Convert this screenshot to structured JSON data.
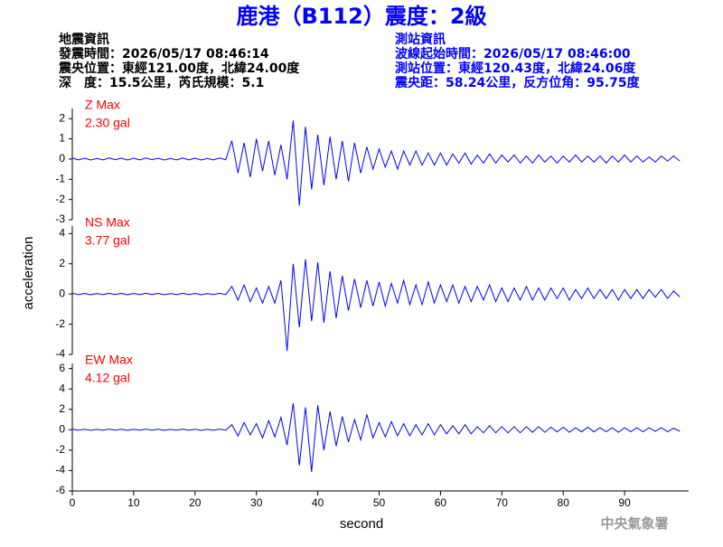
{
  "title": "鹿港（B112）震度：2級",
  "info_left": [
    "地震資訊",
    "發震時間：2026/05/17 08:46:14",
    "震央位置：東經121.00度，北緯24.00度",
    "深　度：15.5公里，芮氏規模：5.1"
  ],
  "info_right": [
    "測站資訊",
    "波線起始時間：2026/05/17 08:46:00",
    "測站位置：東經120.43度，北緯24.06度",
    "震央距：58.24公里，反方位角：95.75度"
  ],
  "y_label": "acceleration",
  "x_label": "second",
  "footer": "中央氣象署",
  "chart_data": [
    {
      "type": "line",
      "annotations": [
        "Z Max",
        "2.30 gal"
      ],
      "xlim": [
        0,
        100
      ],
      "ylim": [
        -3,
        2.5
      ],
      "yticks": [
        -3,
        -2,
        -1,
        0,
        1,
        2
      ],
      "x": [
        0,
        1,
        2,
        3,
        4,
        5,
        6,
        7,
        8,
        9,
        10,
        11,
        12,
        13,
        14,
        15,
        16,
        17,
        18,
        19,
        20,
        21,
        22,
        23,
        24,
        25,
        26,
        27,
        28,
        29,
        30,
        31,
        32,
        33,
        34,
        35,
        36,
        37,
        38,
        39,
        40,
        41,
        42,
        43,
        44,
        45,
        46,
        47,
        48,
        49,
        50,
        51,
        52,
        53,
        54,
        55,
        56,
        57,
        58,
        59,
        60,
        61,
        62,
        63,
        64,
        65,
        66,
        67,
        68,
        69,
        70,
        71,
        72,
        73,
        74,
        75,
        76,
        77,
        78,
        79,
        80,
        81,
        82,
        83,
        84,
        85,
        86,
        87,
        88,
        89,
        90,
        91,
        92,
        93,
        94,
        95,
        96,
        97,
        98,
        99
      ],
      "series": [
        {
          "color": "#0000ff",
          "values": [
            0.05,
            -0.04,
            0.04,
            -0.05,
            0.03,
            -0.04,
            0.05,
            -0.03,
            0.04,
            -0.05,
            0.04,
            -0.04,
            0.05,
            -0.03,
            0.04,
            -0.05,
            0.03,
            -0.04,
            0.05,
            -0.04,
            0.04,
            -0.05,
            0.03,
            -0.04,
            0.05,
            -0.04,
            0.9,
            -0.7,
            0.8,
            -0.9,
            1.0,
            -0.6,
            0.9,
            -0.8,
            0.7,
            -1.0,
            1.9,
            -2.3,
            1.6,
            -1.5,
            1.2,
            -1.3,
            1.1,
            -1.0,
            0.9,
            -1.1,
            0.8,
            -0.7,
            0.6,
            -0.5,
            0.5,
            -0.4,
            0.4,
            -0.5,
            0.4,
            -0.3,
            0.4,
            -0.3,
            0.3,
            -0.3,
            0.3,
            -0.3,
            0.25,
            -0.2,
            0.3,
            -0.25,
            0.2,
            -0.2,
            0.25,
            -0.2,
            0.2,
            -0.15,
            0.2,
            -0.2,
            0.15,
            -0.2,
            0.2,
            -0.15,
            0.15,
            -0.2,
            0.15,
            -0.15,
            0.2,
            -0.15,
            0.15,
            -0.15,
            0.15,
            -0.2,
            0.15,
            -0.15,
            0.2,
            -0.15,
            0.15,
            -0.15,
            0.1,
            -0.15,
            0.15,
            -0.1,
            0.15,
            -0.1
          ]
        }
      ]
    },
    {
      "type": "line",
      "annotations": [
        "NS Max",
        "3.77 gal"
      ],
      "xlim": [
        0,
        100
      ],
      "ylim": [
        -4,
        4.5
      ],
      "yticks": [
        -4,
        -2,
        0,
        2,
        4
      ],
      "x": [
        0,
        1,
        2,
        3,
        4,
        5,
        6,
        7,
        8,
        9,
        10,
        11,
        12,
        13,
        14,
        15,
        16,
        17,
        18,
        19,
        20,
        21,
        22,
        23,
        24,
        25,
        26,
        27,
        28,
        29,
        30,
        31,
        32,
        33,
        34,
        35,
        36,
        37,
        38,
        39,
        40,
        41,
        42,
        43,
        44,
        45,
        46,
        47,
        48,
        49,
        50,
        51,
        52,
        53,
        54,
        55,
        56,
        57,
        58,
        59,
        60,
        61,
        62,
        63,
        64,
        65,
        66,
        67,
        68,
        69,
        70,
        71,
        72,
        73,
        74,
        75,
        76,
        77,
        78,
        79,
        80,
        81,
        82,
        83,
        84,
        85,
        86,
        87,
        88,
        89,
        90,
        91,
        92,
        93,
        94,
        95,
        96,
        97,
        98,
        99
      ],
      "series": [
        {
          "color": "#0000ff",
          "values": [
            0.05,
            -0.04,
            0.04,
            -0.05,
            0.03,
            -0.04,
            0.05,
            -0.03,
            0.04,
            -0.05,
            0.04,
            -0.04,
            0.05,
            -0.03,
            0.04,
            -0.05,
            0.03,
            -0.04,
            0.05,
            -0.04,
            0.04,
            -0.05,
            0.03,
            -0.04,
            0.05,
            -0.04,
            0.5,
            -0.4,
            0.6,
            -0.5,
            0.4,
            -0.6,
            0.5,
            -0.6,
            0.9,
            -3.77,
            2.0,
            -2.2,
            2.3,
            -1.8,
            2.1,
            -1.9,
            1.5,
            -1.6,
            1.2,
            -1.1,
            1.0,
            -0.9,
            0.9,
            -0.8,
            0.8,
            -0.8,
            0.7,
            -0.6,
            0.9,
            -0.7,
            0.6,
            -0.7,
            0.8,
            -0.6,
            0.6,
            -0.5,
            0.6,
            -0.6,
            0.5,
            -0.5,
            0.5,
            -0.4,
            0.6,
            -0.5,
            0.4,
            -0.5,
            0.4,
            -0.4,
            0.5,
            -0.4,
            0.4,
            -0.4,
            0.4,
            -0.3,
            0.4,
            -0.4,
            0.3,
            -0.3,
            0.4,
            -0.3,
            0.3,
            -0.3,
            0.3,
            -0.4,
            0.3,
            -0.3,
            0.3,
            -0.3,
            0.3,
            -0.2,
            0.3,
            -0.3,
            0.2,
            -0.2
          ]
        }
      ]
    },
    {
      "type": "line",
      "annotations": [
        "EW Max",
        "4.12 gal"
      ],
      "xlim": [
        0,
        100
      ],
      "ylim": [
        -6,
        6.5
      ],
      "yticks": [
        -6,
        -4,
        -2,
        0,
        2,
        4,
        6
      ],
      "xticks": [
        0,
        10,
        20,
        30,
        40,
        50,
        60,
        70,
        80,
        90
      ],
      "x": [
        0,
        1,
        2,
        3,
        4,
        5,
        6,
        7,
        8,
        9,
        10,
        11,
        12,
        13,
        14,
        15,
        16,
        17,
        18,
        19,
        20,
        21,
        22,
        23,
        24,
        25,
        26,
        27,
        28,
        29,
        30,
        31,
        32,
        33,
        34,
        35,
        36,
        37,
        38,
        39,
        40,
        41,
        42,
        43,
        44,
        45,
        46,
        47,
        48,
        49,
        50,
        51,
        52,
        53,
        54,
        55,
        56,
        57,
        58,
        59,
        60,
        61,
        62,
        63,
        64,
        65,
        66,
        67,
        68,
        69,
        70,
        71,
        72,
        73,
        74,
        75,
        76,
        77,
        78,
        79,
        80,
        81,
        82,
        83,
        84,
        85,
        86,
        87,
        88,
        89,
        90,
        91,
        92,
        93,
        94,
        95,
        96,
        97,
        98,
        99
      ],
      "series": [
        {
          "color": "#0000ff",
          "values": [
            0.06,
            -0.05,
            0.05,
            -0.06,
            0.04,
            -0.05,
            0.06,
            -0.04,
            0.05,
            -0.06,
            0.05,
            -0.05,
            0.06,
            -0.04,
            0.05,
            -0.06,
            0.04,
            -0.05,
            0.06,
            -0.05,
            0.05,
            -0.06,
            0.04,
            -0.05,
            0.06,
            -0.05,
            0.5,
            -0.6,
            0.7,
            -0.5,
            0.6,
            -0.8,
            0.9,
            -0.7,
            1.2,
            -1.5,
            2.6,
            -3.5,
            2.2,
            -4.12,
            2.4,
            -2.0,
            1.8,
            -1.6,
            1.3,
            -1.2,
            1.0,
            -1.0,
            1.5,
            -0.8,
            0.7,
            -0.7,
            0.8,
            -0.6,
            0.6,
            -0.6,
            0.5,
            -0.5,
            0.6,
            -0.5,
            0.5,
            -0.4,
            0.4,
            -0.4,
            0.5,
            -0.4,
            0.3,
            -0.3,
            0.4,
            -0.3,
            0.3,
            -0.3,
            0.3,
            -0.3,
            0.3,
            -0.25,
            0.3,
            -0.25,
            0.25,
            -0.2,
            0.25,
            -0.25,
            0.2,
            -0.2,
            0.25,
            -0.2,
            0.2,
            -0.2,
            0.2,
            -0.25,
            0.2,
            -0.2,
            0.2,
            -0.2,
            0.2,
            -0.15,
            0.2,
            -0.2,
            0.15,
            -0.15
          ]
        }
      ]
    }
  ]
}
